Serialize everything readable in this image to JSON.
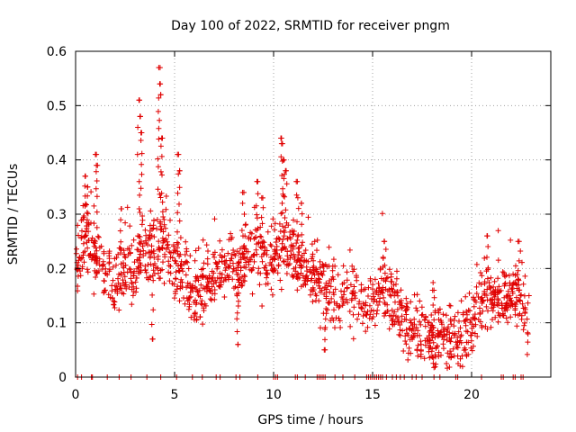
{
  "chart_data": {
    "type": "scatter",
    "title": "Day 100 of 2022, SRMTID for receiver pngm",
    "xlabel": "GPS time / hours",
    "ylabel": "SRMTID / TECUs",
    "xlim": [
      0,
      24
    ],
    "ylim": [
      0,
      0.6
    ],
    "x_ticks": [
      0,
      5,
      10,
      15,
      20
    ],
    "x_tick_labels": [
      "0",
      "5",
      "10",
      "15",
      "20"
    ],
    "y_ticks": [
      0,
      0.1,
      0.2,
      0.3,
      0.4,
      0.5,
      0.6
    ],
    "y_tick_labels": [
      "0",
      "0.1",
      "0.2",
      "0.3",
      "0.4",
      "0.5",
      "0.6"
    ],
    "grid": true,
    "marker": "plus",
    "series_color": "#e00000",
    "trend": [
      [
        0.0,
        0.21
      ],
      [
        0.5,
        0.26
      ],
      [
        1.0,
        0.22
      ],
      [
        1.5,
        0.2
      ],
      [
        2.0,
        0.17
      ],
      [
        2.5,
        0.2
      ],
      [
        3.0,
        0.19
      ],
      [
        3.5,
        0.24
      ],
      [
        4.0,
        0.23
      ],
      [
        4.5,
        0.24
      ],
      [
        5.0,
        0.2
      ],
      [
        5.5,
        0.19
      ],
      [
        6.0,
        0.15
      ],
      [
        6.5,
        0.16
      ],
      [
        7.0,
        0.18
      ],
      [
        7.5,
        0.2
      ],
      [
        8.0,
        0.19
      ],
      [
        8.5,
        0.22
      ],
      [
        9.0,
        0.23
      ],
      [
        9.5,
        0.22
      ],
      [
        10.0,
        0.21
      ],
      [
        10.5,
        0.24
      ],
      [
        11.0,
        0.22
      ],
      [
        11.5,
        0.2
      ],
      [
        12.0,
        0.19
      ],
      [
        12.5,
        0.17
      ],
      [
        13.0,
        0.14
      ],
      [
        13.5,
        0.15
      ],
      [
        14.0,
        0.16
      ],
      [
        14.5,
        0.13
      ],
      [
        15.0,
        0.14
      ],
      [
        15.5,
        0.17
      ],
      [
        16.0,
        0.13
      ],
      [
        16.5,
        0.11
      ],
      [
        17.0,
        0.09
      ],
      [
        17.5,
        0.07
      ],
      [
        18.0,
        0.08
      ],
      [
        18.5,
        0.07
      ],
      [
        19.0,
        0.06
      ],
      [
        19.5,
        0.07
      ],
      [
        20.0,
        0.1
      ],
      [
        20.5,
        0.13
      ],
      [
        21.0,
        0.15
      ],
      [
        21.5,
        0.13
      ],
      [
        22.0,
        0.15
      ],
      [
        22.5,
        0.14
      ],
      [
        22.8,
        0.11
      ]
    ],
    "peaks": [
      [
        0.5,
        0.37
      ],
      [
        0.6,
        0.35
      ],
      [
        1.0,
        0.41
      ],
      [
        1.05,
        0.39
      ],
      [
        2.3,
        0.31
      ],
      [
        3.2,
        0.51
      ],
      [
        3.25,
        0.48
      ],
      [
        3.3,
        0.45
      ],
      [
        4.2,
        0.57
      ],
      [
        4.25,
        0.54
      ],
      [
        4.3,
        0.52
      ],
      [
        4.35,
        0.44
      ],
      [
        5.2,
        0.41
      ],
      [
        5.25,
        0.38
      ],
      [
        8.5,
        0.34
      ],
      [
        9.2,
        0.36
      ],
      [
        9.4,
        0.33
      ],
      [
        10.4,
        0.44
      ],
      [
        10.45,
        0.43
      ],
      [
        10.5,
        0.4
      ],
      [
        10.6,
        0.38
      ],
      [
        11.2,
        0.36
      ],
      [
        11.4,
        0.32
      ],
      [
        8.2,
        0.06
      ],
      [
        3.9,
        0.07
      ],
      [
        12.6,
        0.05
      ],
      [
        15.6,
        0.25
      ],
      [
        18.1,
        0.16
      ],
      [
        20.8,
        0.26
      ],
      [
        22.4,
        0.25
      ]
    ],
    "spread": 0.045,
    "point_count": 1500,
    "zero_points_x": [
      0.1,
      0.3,
      0.8,
      0.85,
      1.6,
      2.2,
      2.8,
      3.6,
      4.3,
      5.1,
      5.9,
      6.4,
      7.1,
      7.3,
      8.1,
      8.3,
      9.2,
      10.0,
      10.1,
      10.2,
      11.1,
      11.2,
      11.6,
      12.2,
      12.3,
      12.4,
      12.5,
      12.6,
      13.1,
      13.5,
      14.1,
      14.7,
      14.8,
      14.9,
      15.0,
      15.1,
      15.2,
      15.3,
      15.4,
      15.5,
      15.7,
      16.0,
      16.2,
      16.4,
      16.6,
      17.0,
      17.2,
      17.5,
      18.1,
      18.4,
      19.2,
      19.3,
      20.5,
      21.5,
      21.6,
      22.1,
      22.2,
      22.5,
      22.6
    ]
  }
}
